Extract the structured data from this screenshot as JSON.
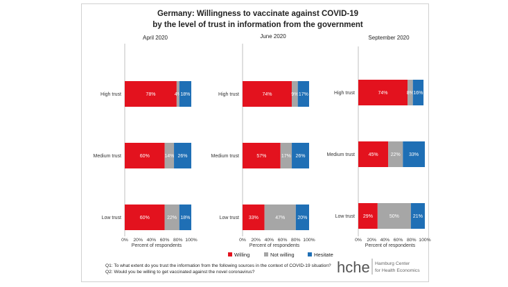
{
  "chart_data": {
    "type": "bar",
    "title_line1": "Germany: Willingness to vaccinate against COVID-19",
    "title_line2": "by the level of trust in information from the government",
    "stacked": true,
    "orientation": "horizontal",
    "xlim": [
      0,
      100
    ],
    "xlabel": "Percent of respondents",
    "x_ticks": [
      "0%",
      "20%",
      "40%",
      "60%",
      "80%",
      "100%"
    ],
    "categories": [
      "High trust",
      "Medium trust",
      "Low trust"
    ],
    "legend": [
      {
        "name": "Willing",
        "color": "#e3121e"
      },
      {
        "name": "Not willing",
        "color": "#a6a6a6"
      },
      {
        "name": "Hesitate",
        "color": "#1f6fb5"
      }
    ],
    "legend_position": "bottom",
    "panels": [
      {
        "title": "April 2020",
        "series": [
          {
            "name": "Willing",
            "values": [
              78,
              60,
              60
            ],
            "labels": [
              "78%",
              "60%",
              "60%"
            ]
          },
          {
            "name": "Not willing",
            "values": [
              4,
              14,
              22
            ],
            "labels": [
              "4%",
              "14%",
              "22%"
            ]
          },
          {
            "name": "Hesitate",
            "values": [
              18,
              26,
              18
            ],
            "labels": [
              "18%",
              "26%",
              "18%"
            ]
          }
        ]
      },
      {
        "title": "June 2020",
        "series": [
          {
            "name": "Willing",
            "values": [
              74,
              57,
              33
            ],
            "labels": [
              "74%",
              "57%",
              "33%"
            ]
          },
          {
            "name": "Not willing",
            "values": [
              9,
              17,
              47
            ],
            "labels": [
              "9%",
              "17%",
              "47%"
            ]
          },
          {
            "name": "Hesitate",
            "values": [
              17,
              26,
              20
            ],
            "labels": [
              "17%",
              "26%",
              "20%"
            ]
          }
        ]
      },
      {
        "title": "September 2020",
        "series": [
          {
            "name": "Willing",
            "values": [
              74,
              45,
              29
            ],
            "labels": [
              "74%",
              "45%",
              "29%"
            ]
          },
          {
            "name": "Not willing",
            "values": [
              8,
              22,
              50
            ],
            "labels": [
              "8%",
              "22%",
              "50%"
            ]
          },
          {
            "name": "Hesitate",
            "values": [
              16,
              33,
              21
            ],
            "labels": [
              "16%",
              "33%",
              "21%"
            ]
          }
        ]
      }
    ]
  },
  "footnotes": {
    "q1": "Q1: To what extent do you trust the information from the following sources in the context of COVID-19 situation?",
    "q2": "Q2: Would you be willing to get vaccinated against the novel coronavirus?"
  },
  "logo": {
    "mark": "hche",
    "line1": "Hamburg Center",
    "line2": "for Health Economics"
  }
}
